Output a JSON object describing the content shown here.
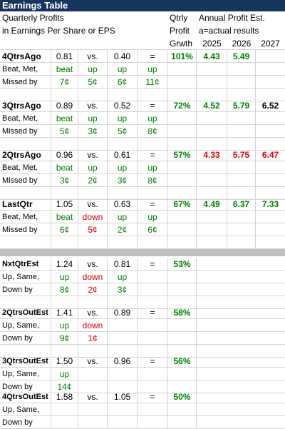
{
  "title": "Earnings Table",
  "header": {
    "left_line1": "Quarterly Profits",
    "left_line2": "in Earnings Per Share or EPS",
    "qtrly_1": "Qtrly",
    "qtrly_2": "Profit",
    "qtrly_3": "Grwth",
    "annual_1": "Annual Profit Est.",
    "annual_2": "a=actual results",
    "years": [
      "2025",
      "2026",
      "2027"
    ]
  },
  "colors": {
    "green": "#008000",
    "red": "#e00000",
    "title_bg": "#17365d",
    "separator": "#c0c0c0"
  },
  "past_quarters": [
    {
      "label": "4QtrsAgo",
      "eps": "0.81",
      "vs": "vs.",
      "prior": "0.40",
      "eq": "=",
      "growth": "101%",
      "est": [
        "4.43",
        "5.49",
        ""
      ],
      "est_colors": [
        "green",
        "green",
        "black"
      ],
      "status_label": "Beat, Met,",
      "words": [
        "beat",
        "up",
        "up",
        "up"
      ],
      "word_colors": [
        "green",
        "green",
        "green",
        "green"
      ],
      "missed_label": "Missed by",
      "amounts": [
        "7¢",
        "5¢",
        "6¢",
        "11¢"
      ],
      "amount_colors": [
        "green",
        "green",
        "green",
        "green"
      ]
    },
    {
      "label": "3QtrsAgo",
      "eps": "0.89",
      "vs": "vs.",
      "prior": "0.52",
      "eq": "=",
      "growth": "72%",
      "est": [
        "4.52",
        "5.79",
        "6.52"
      ],
      "est_colors": [
        "green",
        "green",
        "black"
      ],
      "status_label": "Beat, Met,",
      "words": [
        "beat",
        "up",
        "up",
        "up"
      ],
      "word_colors": [
        "green",
        "green",
        "green",
        "green"
      ],
      "missed_label": "Missed by",
      "amounts": [
        "5¢",
        "3¢",
        "5¢",
        "8¢"
      ],
      "amount_colors": [
        "green",
        "green",
        "green",
        "green"
      ]
    },
    {
      "label": "2QtrsAgo",
      "eps": "0.96",
      "vs": "vs.",
      "prior": "0.61",
      "eq": "=",
      "growth": "57%",
      "est": [
        "4.33",
        "5.75",
        "6.47"
      ],
      "est_colors": [
        "red",
        "red",
        "red"
      ],
      "status_label": "Beat, Met,",
      "words": [
        "beat",
        "up",
        "up",
        "up"
      ],
      "word_colors": [
        "green",
        "green",
        "green",
        "green"
      ],
      "missed_label": "Missed by",
      "amounts": [
        "3¢",
        "2¢",
        "3¢",
        "8¢"
      ],
      "amount_colors": [
        "green",
        "green",
        "green",
        "green"
      ]
    },
    {
      "label": "LastQtr",
      "eps": "1.05",
      "vs": "vs.",
      "prior": "0.63",
      "eq": "=",
      "growth": "67%",
      "est": [
        "4.49",
        "6.37",
        "7.33"
      ],
      "est_colors": [
        "green",
        "green",
        "green"
      ],
      "status_label": "Beat, Met,",
      "words": [
        "beat",
        "down",
        "up",
        "up"
      ],
      "word_colors": [
        "green",
        "red",
        "green",
        "green"
      ],
      "missed_label": "Missed by",
      "amounts": [
        "6¢",
        "5¢",
        "2¢",
        "6¢"
      ],
      "amount_colors": [
        "green",
        "red",
        "green",
        "green"
      ]
    }
  ],
  "future_quarters": [
    {
      "label": "NxtQtrEst",
      "eps": "1.24",
      "vs": "vs.",
      "prior": "0.81",
      "eq": "=",
      "growth": "53%",
      "status_label": "Up, Same,",
      "words": [
        "up",
        "down",
        "up"
      ],
      "word_colors": [
        "green",
        "red",
        "green"
      ],
      "down_label": "Down by",
      "amounts": [
        "8¢",
        "2¢",
        "3¢"
      ],
      "amount_colors": [
        "green",
        "red",
        "green"
      ]
    },
    {
      "label": "2QtrsOutEst",
      "eps": "1.41",
      "vs": "vs.",
      "prior": "0.89",
      "eq": "=",
      "growth": "58%",
      "status_label": "Up, Same,",
      "words": [
        "up",
        "down",
        ""
      ],
      "word_colors": [
        "green",
        "red",
        "green"
      ],
      "down_label": "Down by",
      "amounts": [
        "9¢",
        "1¢",
        ""
      ],
      "amount_colors": [
        "green",
        "red",
        "green"
      ]
    },
    {
      "label": "3QtrsOutEst",
      "eps": "1.50",
      "vs": "vs.",
      "prior": "0.96",
      "eq": "=",
      "growth": "56%",
      "status_label": "Up, Same,",
      "words": [
        "up",
        "",
        ""
      ],
      "word_colors": [
        "green",
        "green",
        "green"
      ],
      "down_label": "Down by",
      "amounts": [
        "14¢",
        "",
        ""
      ],
      "amount_colors": [
        "green",
        "green",
        "green"
      ]
    },
    {
      "label": "4QtrsOutEst",
      "eps": "1.58",
      "vs": "vs.",
      "prior": "1.05",
      "eq": "=",
      "growth": "50%",
      "status_label": "Up, Same,",
      "words": [
        "",
        "",
        ""
      ],
      "word_colors": [
        "green",
        "green",
        "green"
      ],
      "down_label": "Down by",
      "amounts": [
        "",
        "",
        ""
      ],
      "amount_colors": [
        "green",
        "green",
        "green"
      ]
    }
  ]
}
